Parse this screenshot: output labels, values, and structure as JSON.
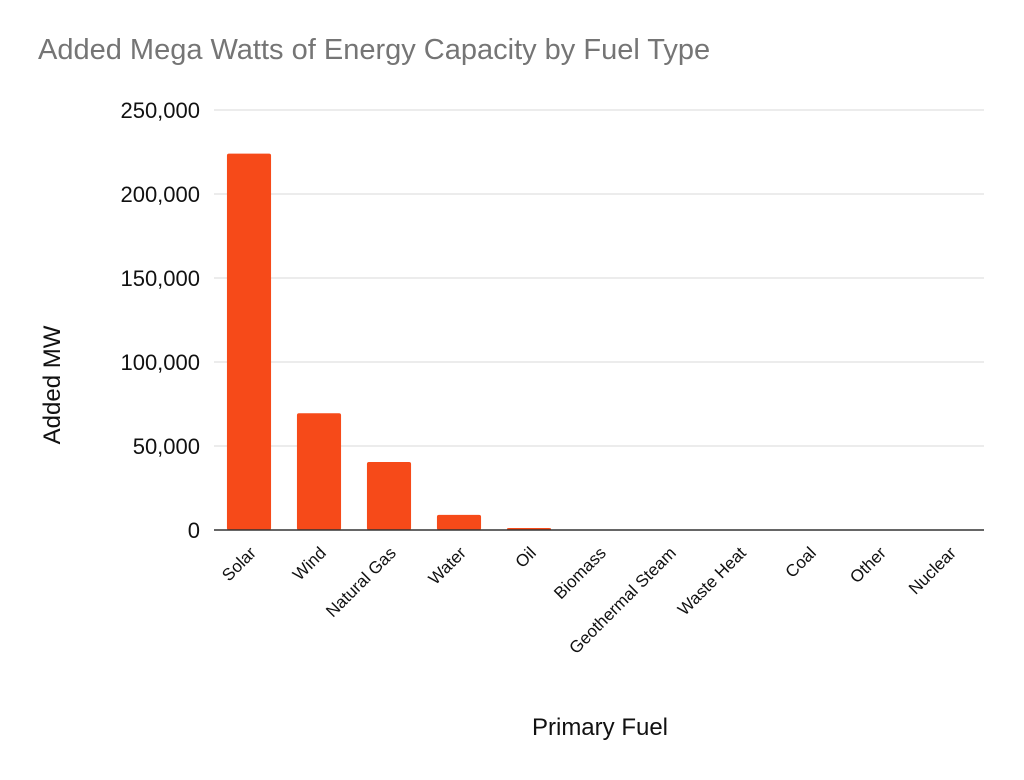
{
  "chart_data": {
    "type": "bar",
    "title": "Added Mega Watts of Energy Capacity by Fuel Type",
    "xlabel": "Primary Fuel",
    "ylabel": "Added MW",
    "categories": [
      "Solar",
      "Wind",
      "Natural Gas",
      "Water",
      "Oil",
      "Biomass",
      "Geothermal Steam",
      "Waste Heat",
      "Coal",
      "Other",
      "Nuclear"
    ],
    "values": [
      224000,
      69500,
      40500,
      9000,
      1200,
      300,
      150,
      100,
      50,
      30,
      0
    ],
    "ylim": [
      0,
      250000
    ],
    "yticks": [
      0,
      50000,
      100000,
      150000,
      200000,
      250000
    ],
    "ytick_labels": [
      "0",
      "50,000",
      "100,000",
      "150,000",
      "200,000",
      "250,000"
    ],
    "grid": true,
    "legend": "none",
    "bar_color": "#f64a19",
    "grid_color": "#d9d9d9"
  }
}
